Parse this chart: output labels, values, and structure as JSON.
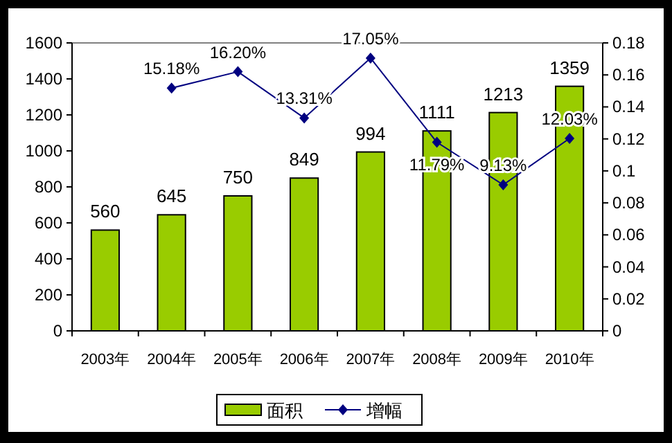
{
  "chart_data": {
    "type": "bar",
    "categories": [
      "2003年",
      "2004年",
      "2005年",
      "2006年",
      "2007年",
      "2008年",
      "2009年",
      "2010年"
    ],
    "series": [
      {
        "name": "面积",
        "color": "#99cc00",
        "values": [
          560,
          645,
          750,
          849,
          994,
          1111,
          1213,
          1359
        ],
        "value_labels": [
          "560",
          "645",
          "750",
          "849",
          "994",
          "1111",
          "1213",
          "1359"
        ]
      },
      {
        "name": "增幅",
        "type": "line",
        "axis": "y2",
        "color": "#000080",
        "marker": "diamond",
        "values": [
          null,
          0.1518,
          0.162,
          0.1331,
          0.1705,
          0.1179,
          0.0913,
          0.1203
        ],
        "value_labels": [
          null,
          "15.18%",
          "16.20%",
          "13.31%",
          "17.05%",
          "11.79%",
          "9.13%",
          "12.03%"
        ]
      }
    ],
    "ylim": [
      0,
      1600
    ],
    "yticks": [
      0,
      200,
      400,
      600,
      800,
      1000,
      1200,
      1400,
      1600
    ],
    "y2lim": [
      0,
      0.18
    ],
    "y2ticks": [
      0,
      0.02,
      0.04,
      0.06,
      0.08,
      0.1,
      0.12,
      0.14,
      0.16,
      0.18
    ],
    "legend": "bottom"
  }
}
